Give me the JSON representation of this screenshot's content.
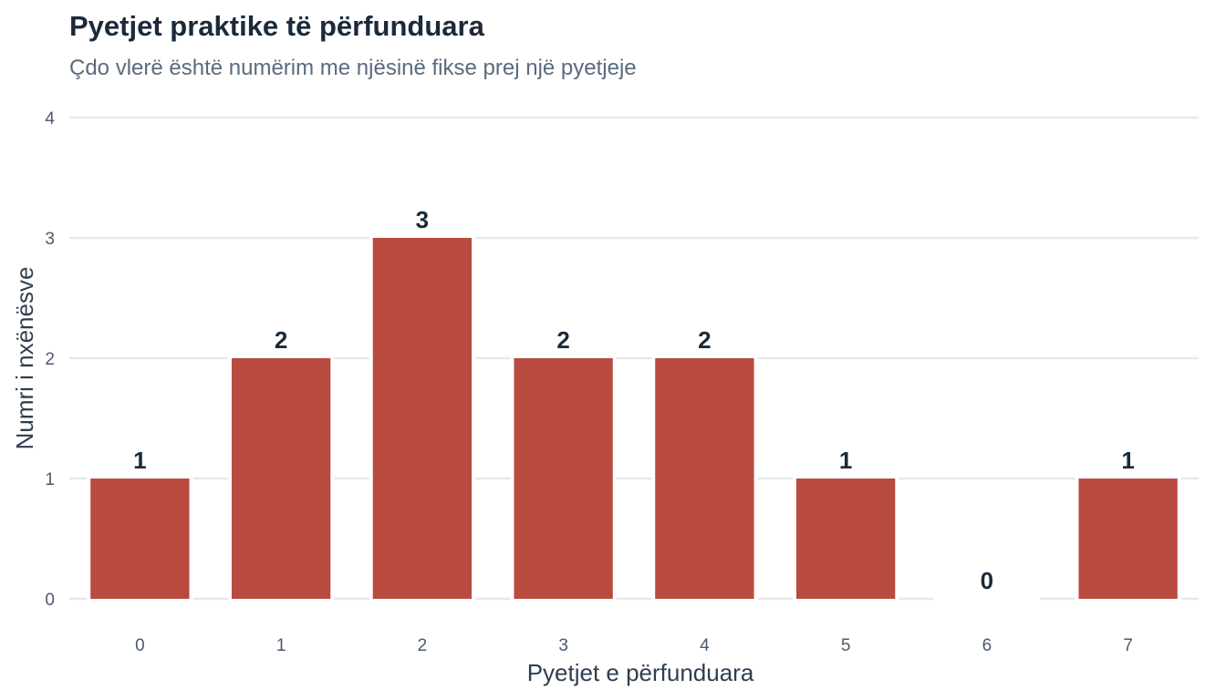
{
  "chart_data": {
    "type": "bar",
    "title": "Pyetjet praktike të përfunduara",
    "subtitle": "Çdo vlerë është numërim me njësinë fikse prej një pyetjeje",
    "xlabel": "Pyetjet e përfunduara",
    "ylabel": "Numri i nxënësve",
    "categories": [
      "0",
      "1",
      "2",
      "3",
      "4",
      "5",
      "6",
      "7"
    ],
    "values": [
      1,
      2,
      3,
      2,
      2,
      1,
      0,
      1
    ],
    "ylim": [
      0,
      4
    ],
    "yticks": [
      0,
      1,
      2,
      3,
      4
    ],
    "grid": true,
    "legend": "none",
    "bar_color": "#b94a3f",
    "data_labels": true
  }
}
